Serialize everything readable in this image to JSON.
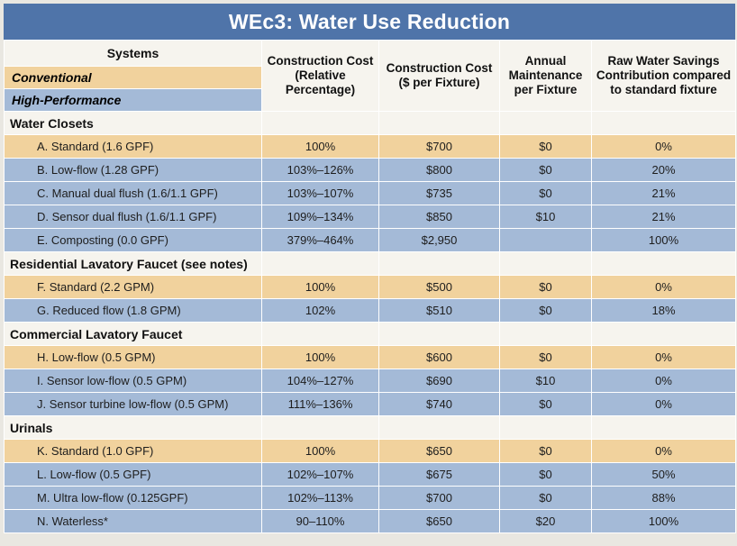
{
  "title": "WEc3: Water Use Reduction",
  "header": {
    "systems": "Systems",
    "legend_conventional": "Conventional",
    "legend_high_performance": "High-Performance",
    "col_cost_relative": "Construction Cost (Relative Percentage)",
    "col_cost_dollars": "Construction Cost ($ per Fixture)",
    "col_maintenance": "Annual Maintenance per Fixture",
    "col_savings": "Raw Water Savings Contribution compared to standard fixture"
  },
  "colors": {
    "title_bar": "#4f74a9",
    "conventional": "#f1d29d",
    "high_performance": "#a4bad7",
    "section": "#f6f4ee"
  },
  "sections": [
    {
      "label": "Water Closets",
      "rows": [
        {
          "type": "conventional",
          "system": "A. Standard (1.6 GPF)",
          "relative": "100%",
          "cost": "$700",
          "maintenance": "$0",
          "savings": "0%"
        },
        {
          "type": "high",
          "system": "B. Low-flow (1.28 GPF)",
          "relative": "103%–126%",
          "cost": "$800",
          "maintenance": "$0",
          "savings": "20%"
        },
        {
          "type": "high",
          "system": "C. Manual dual flush (1.6/1.1 GPF)",
          "relative": "103%–107%",
          "cost": "$735",
          "maintenance": "$0",
          "savings": "21%"
        },
        {
          "type": "high",
          "system": "D. Sensor dual flush (1.6/1.1 GPF)",
          "relative": "109%–134%",
          "cost": "$850",
          "maintenance": "$10",
          "savings": "21%"
        },
        {
          "type": "high",
          "system": "E. Composting (0.0 GPF)",
          "relative": "379%–464%",
          "cost": "$2,950",
          "maintenance": "",
          "savings": "100%"
        }
      ]
    },
    {
      "label": "Residential Lavatory Faucet (see notes)",
      "rows": [
        {
          "type": "conventional",
          "system": "F. Standard (2.2 GPM)",
          "relative": "100%",
          "cost": "$500",
          "maintenance": "$0",
          "savings": "0%"
        },
        {
          "type": "high",
          "system": "G. Reduced flow (1.8 GPM)",
          "relative": "102%",
          "cost": "$510",
          "maintenance": "$0",
          "savings": "18%"
        }
      ]
    },
    {
      "label": "Commercial Lavatory Faucet",
      "rows": [
        {
          "type": "conventional",
          "system": "H. Low-flow (0.5 GPM)",
          "relative": "100%",
          "cost": "$600",
          "maintenance": "$0",
          "savings": "0%"
        },
        {
          "type": "high",
          "system": "I. Sensor low-flow (0.5 GPM)",
          "relative": "104%–127%",
          "cost": "$690",
          "maintenance": "$10",
          "savings": "0%"
        },
        {
          "type": "high",
          "system": "J. Sensor turbine low-flow (0.5 GPM)",
          "relative": "111%–136%",
          "cost": "$740",
          "maintenance": "$0",
          "savings": "0%"
        }
      ]
    },
    {
      "label": "Urinals",
      "rows": [
        {
          "type": "conventional",
          "system": "K. Standard (1.0 GPF)",
          "relative": "100%",
          "cost": "$650",
          "maintenance": "$0",
          "savings": "0%"
        },
        {
          "type": "high",
          "system": "L. Low-flow (0.5 GPF)",
          "relative": "102%–107%",
          "cost": "$675",
          "maintenance": "$0",
          "savings": "50%"
        },
        {
          "type": "high",
          "system": "M. Ultra low-flow (0.125GPF)",
          "relative": "102%–113%",
          "cost": "$700",
          "maintenance": "$0",
          "savings": "88%"
        },
        {
          "type": "high",
          "system": "N. Waterless*",
          "relative": "90–110%",
          "cost": "$650",
          "maintenance": "$20",
          "savings": "100%"
        }
      ]
    }
  ]
}
